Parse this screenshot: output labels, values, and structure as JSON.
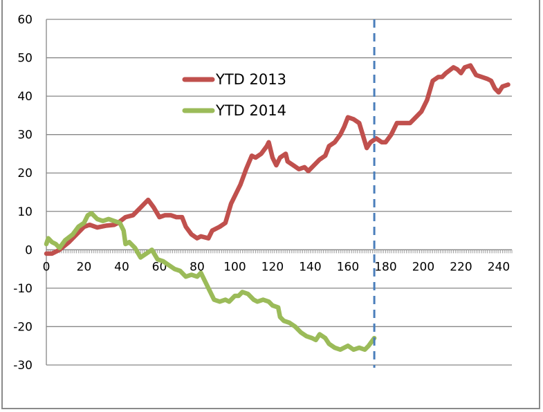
{
  "chart_data": {
    "type": "line",
    "title": "",
    "xlabel": "",
    "ylabel": "",
    "xlim": [
      0,
      247
    ],
    "ylim": [
      -30,
      60
    ],
    "xticks": [
      0,
      20,
      40,
      60,
      80,
      100,
      120,
      140,
      160,
      180,
      200,
      220,
      240
    ],
    "yticks": [
      60,
      50,
      40,
      30,
      20,
      10,
      0,
      -10,
      -20,
      -30
    ],
    "grid": true,
    "legend_position": "upper-left-center",
    "reference_line": {
      "x": 174,
      "style": "dashed",
      "color": "#4a7ebb"
    },
    "series": [
      {
        "name": "YTD 2013",
        "color": "#c0504d",
        "points": [
          [
            0,
            -1
          ],
          [
            3,
            -1
          ],
          [
            7,
            0
          ],
          [
            12,
            2
          ],
          [
            16,
            4
          ],
          [
            20,
            6
          ],
          [
            23,
            6.5
          ],
          [
            27,
            5.8
          ],
          [
            32,
            6.3
          ],
          [
            36,
            6.5
          ],
          [
            38,
            7
          ],
          [
            42,
            8.5
          ],
          [
            46,
            9
          ],
          [
            50,
            11
          ],
          [
            54,
            13
          ],
          [
            57,
            11
          ],
          [
            60,
            8.5
          ],
          [
            63,
            9
          ],
          [
            66,
            9
          ],
          [
            69,
            8.5
          ],
          [
            72,
            8.5
          ],
          [
            74,
            6
          ],
          [
            77,
            4
          ],
          [
            80,
            3
          ],
          [
            82,
            3.5
          ],
          [
            86,
            3
          ],
          [
            88,
            5
          ],
          [
            92,
            6
          ],
          [
            95,
            7
          ],
          [
            98,
            12
          ],
          [
            101,
            15
          ],
          [
            103,
            17
          ],
          [
            106,
            21
          ],
          [
            109,
            24.5
          ],
          [
            111,
            24
          ],
          [
            114,
            25
          ],
          [
            117,
            27
          ],
          [
            118,
            28
          ],
          [
            120,
            24
          ],
          [
            122,
            22
          ],
          [
            124,
            24
          ],
          [
            127,
            25
          ],
          [
            128,
            23
          ],
          [
            131,
            22
          ],
          [
            134,
            21
          ],
          [
            137,
            21.5
          ],
          [
            139,
            20.5
          ],
          [
            142,
            22
          ],
          [
            145,
            23.5
          ],
          [
            148,
            24.5
          ],
          [
            150,
            27
          ],
          [
            153,
            28
          ],
          [
            156,
            30
          ],
          [
            158,
            32
          ],
          [
            160,
            34.5
          ],
          [
            163,
            34
          ],
          [
            166,
            33
          ],
          [
            170,
            26.5
          ],
          [
            172,
            28
          ],
          [
            175,
            29
          ],
          [
            178,
            28
          ],
          [
            180,
            28
          ],
          [
            183,
            30
          ],
          [
            186,
            33
          ],
          [
            190,
            33
          ],
          [
            193,
            33
          ],
          [
            196,
            34.5
          ],
          [
            199,
            36
          ],
          [
            202,
            39
          ],
          [
            205,
            44
          ],
          [
            208,
            45
          ],
          [
            210,
            45
          ],
          [
            212,
            46
          ],
          [
            216,
            47.5
          ],
          [
            218,
            47
          ],
          [
            220,
            46
          ],
          [
            222,
            47.5
          ],
          [
            225,
            48
          ],
          [
            228,
            45.5
          ],
          [
            231,
            45
          ],
          [
            234,
            44.5
          ],
          [
            236,
            44
          ],
          [
            238,
            42
          ],
          [
            240,
            41
          ],
          [
            242,
            42.5
          ],
          [
            245,
            43
          ]
        ]
      },
      {
        "name": "YTD 2014",
        "color": "#9bbb59",
        "points": [
          [
            0,
            1.5
          ],
          [
            1,
            3
          ],
          [
            3,
            2
          ],
          [
            5,
            1.5
          ],
          [
            7,
            0.5
          ],
          [
            10,
            2.5
          ],
          [
            14,
            4
          ],
          [
            17,
            6
          ],
          [
            20,
            7
          ],
          [
            22,
            9
          ],
          [
            24,
            9.5
          ],
          [
            27,
            8
          ],
          [
            30,
            7.5
          ],
          [
            33,
            8
          ],
          [
            36,
            7.5
          ],
          [
            39,
            7
          ],
          [
            41,
            5
          ],
          [
            42,
            1.5
          ],
          [
            44,
            2
          ],
          [
            47,
            0.5
          ],
          [
            50,
            -2
          ],
          [
            53,
            -1
          ],
          [
            56,
            0
          ],
          [
            59,
            -2.5
          ],
          [
            62,
            -3
          ],
          [
            65,
            -4
          ],
          [
            68,
            -5
          ],
          [
            71,
            -5.5
          ],
          [
            74,
            -7
          ],
          [
            77,
            -6.5
          ],
          [
            80,
            -7
          ],
          [
            82,
            -6
          ],
          [
            84,
            -8
          ],
          [
            86,
            -10
          ],
          [
            89,
            -13
          ],
          [
            92,
            -13.5
          ],
          [
            95,
            -13
          ],
          [
            97,
            -13.5
          ],
          [
            100,
            -12
          ],
          [
            102,
            -12
          ],
          [
            104,
            -11
          ],
          [
            107,
            -11.5
          ],
          [
            110,
            -13
          ],
          [
            112,
            -13.5
          ],
          [
            115,
            -13
          ],
          [
            118,
            -13.5
          ],
          [
            120,
            -14.5
          ],
          [
            123,
            -15
          ],
          [
            124,
            -17.5
          ],
          [
            126,
            -18.5
          ],
          [
            129,
            -19
          ],
          [
            132,
            -20
          ],
          [
            135,
            -21.5
          ],
          [
            138,
            -22.5
          ],
          [
            141,
            -23
          ],
          [
            143,
            -23.5
          ],
          [
            145,
            -22
          ],
          [
            148,
            -23
          ],
          [
            150,
            -24.5
          ],
          [
            153,
            -25.5
          ],
          [
            156,
            -26
          ],
          [
            158,
            -25.5
          ],
          [
            160,
            -25
          ],
          [
            163,
            -26
          ],
          [
            166,
            -25.5
          ],
          [
            169,
            -26
          ],
          [
            171,
            -25
          ],
          [
            174,
            -23
          ]
        ]
      }
    ]
  }
}
